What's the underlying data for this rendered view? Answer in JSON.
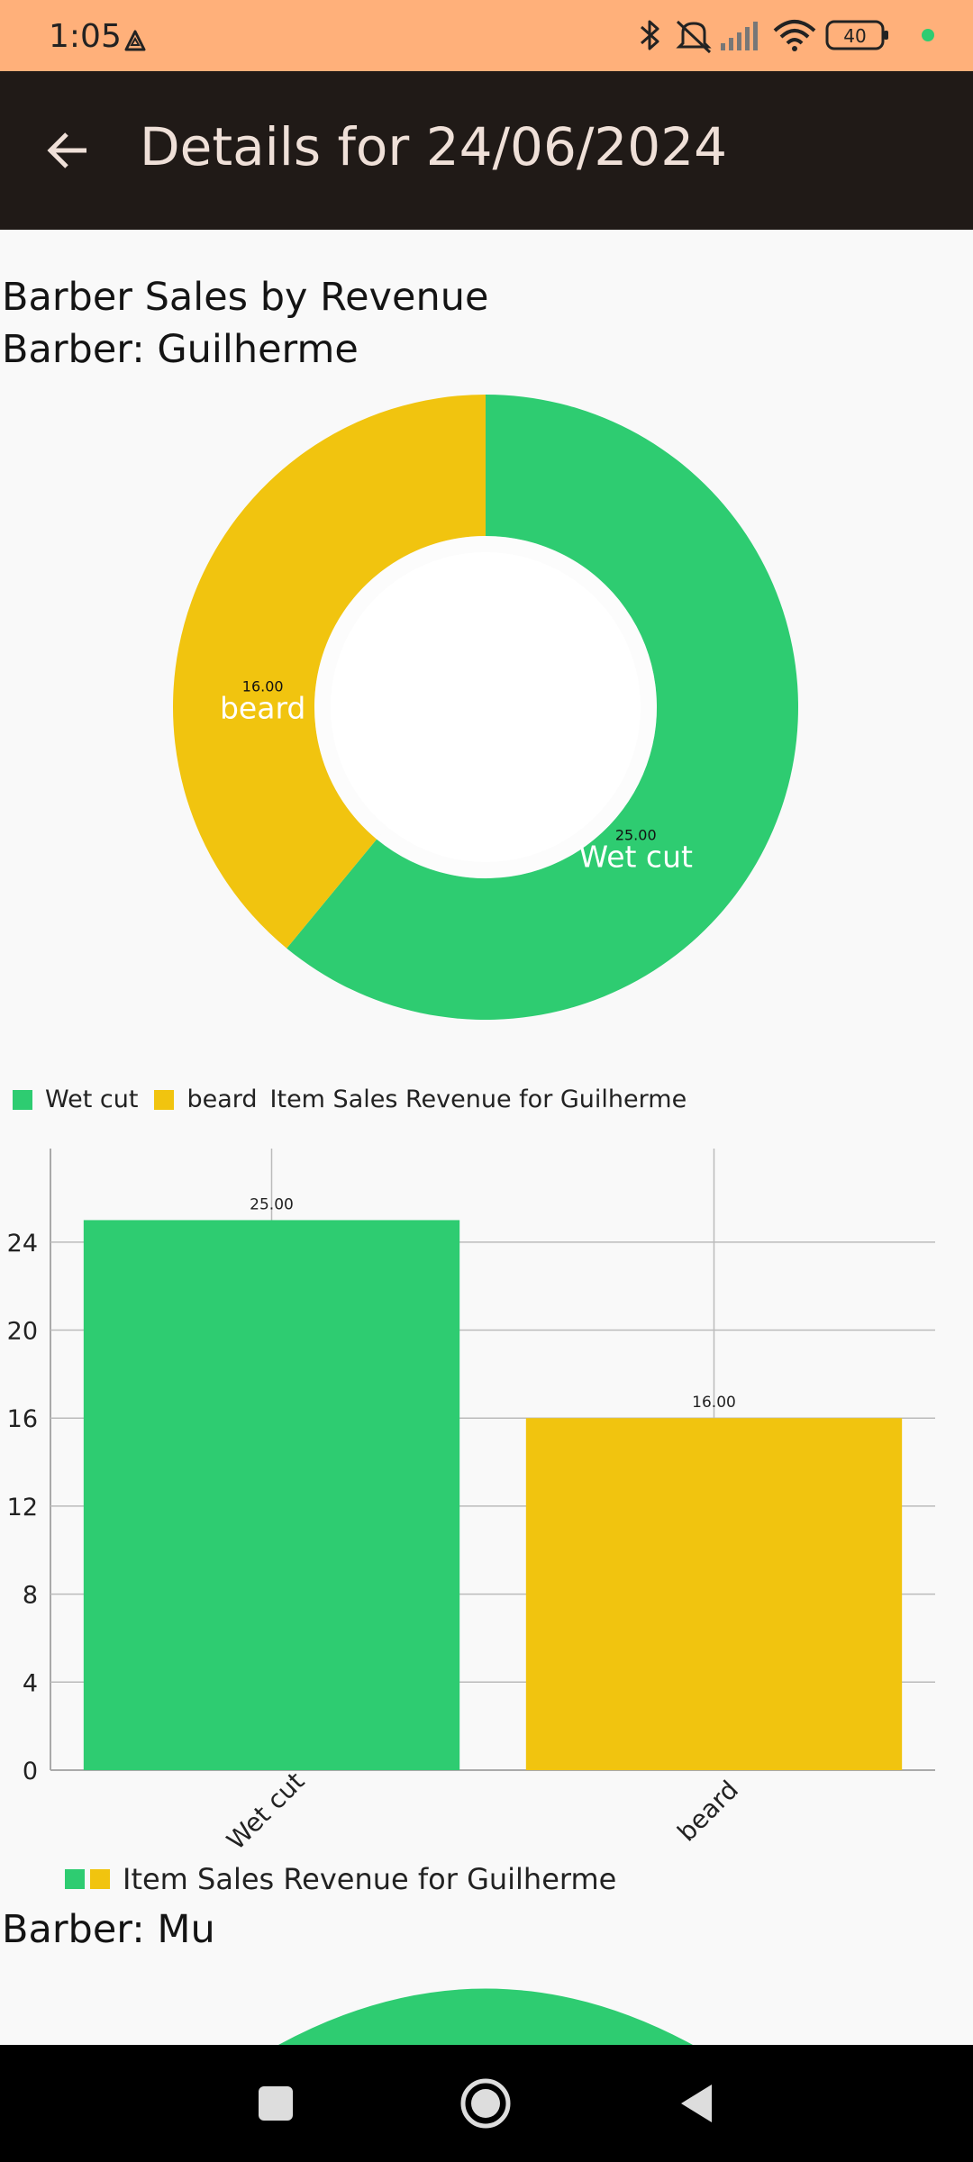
{
  "status_bar": {
    "time": "1:05",
    "battery": "40",
    "icons": [
      "drive-icon",
      "dot-icon",
      "bluetooth-icon",
      "mute-icon",
      "signal-icon",
      "wifi-icon",
      "battery-icon",
      "green-dot-icon"
    ]
  },
  "app_bar": {
    "title": "Details for 24/06/2024",
    "back_icon": "arrow-left-icon"
  },
  "page": {
    "heading": "Barber Sales by Revenue",
    "barber1": "Barber: Guilherme",
    "barber2": "Barber: Mu"
  },
  "colors": {
    "green": "#2ecc71",
    "yellow": "#f1c40f"
  },
  "chart_data": [
    {
      "type": "pie",
      "labels": [
        "Wet cut",
        "beard"
      ],
      "values": [
        25.0,
        16.0
      ],
      "value_labels": [
        "25.00",
        "16.00"
      ],
      "colors": [
        "#2ecc71",
        "#f1c40f"
      ],
      "legend": [
        "Wet cut",
        "beard"
      ],
      "description": "Item Sales Revenue for Guilherme"
    },
    {
      "type": "bar",
      "categories": [
        "Wet cut",
        "beard"
      ],
      "values": [
        25.0,
        16.0
      ],
      "value_labels": [
        "25.00",
        "16.00"
      ],
      "colors": [
        "#2ecc71",
        "#f1c40f"
      ],
      "yticks": [
        0,
        4,
        8,
        12,
        16,
        20,
        24
      ],
      "ylim": [
        0,
        26
      ],
      "legend_label": "Item Sales Revenue for Guilherme"
    }
  ],
  "nav_bar": {
    "buttons": [
      "square-icon",
      "home-circle-icon",
      "back-triangle-icon"
    ]
  }
}
